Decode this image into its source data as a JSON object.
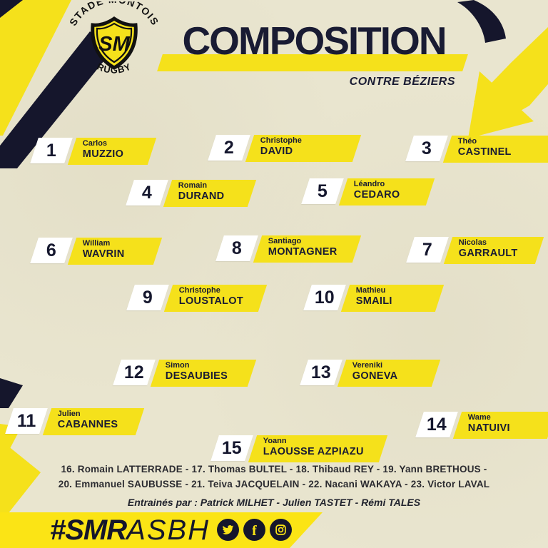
{
  "header": {
    "title_main": "COMPOSITION",
    "title_sub": "CONTRE BÉZIERS"
  },
  "logo": {
    "text_top": "STADE MONTOIS",
    "initials": "SM",
    "text_bottom": "RUGBY"
  },
  "colors": {
    "yellow": "#F5E11B",
    "footer_yellow": "#FBE415",
    "navy": "#191B33",
    "background": "#E9E5CF",
    "white": "#FFFFFF"
  },
  "players": [
    {
      "number": "1",
      "first": "Carlos",
      "last": "MUZZIO"
    },
    {
      "number": "2",
      "first": "Christophe",
      "last": "DAVID"
    },
    {
      "number": "3",
      "first": "Théo",
      "last": "CASTINEL"
    },
    {
      "number": "4",
      "first": "Romain",
      "last": "DURAND"
    },
    {
      "number": "5",
      "first": "Léandro",
      "last": "CEDARO"
    },
    {
      "number": "6",
      "first": "William",
      "last": "WAVRIN"
    },
    {
      "number": "8",
      "first": "Santiago",
      "last": "MONTAGNER"
    },
    {
      "number": "7",
      "first": "Nicolas",
      "last": "GARRAULT"
    },
    {
      "number": "9",
      "first": "Christophe",
      "last": "LOUSTALOT"
    },
    {
      "number": "10",
      "first": "Mathieu",
      "last": "SMAILI"
    },
    {
      "number": "12",
      "first": "Simon",
      "last": "DESAUBIES"
    },
    {
      "number": "13",
      "first": "Vereniki",
      "last": "GONEVA"
    },
    {
      "number": "11",
      "first": "Julien",
      "last": "CABANNES"
    },
    {
      "number": "14",
      "first": "Wame",
      "last": "NATUIVI"
    },
    {
      "number": "15",
      "first": "Yoann",
      "last": "LAOUSSE AZPIAZU"
    }
  ],
  "substitutes": {
    "line1": "16. Romain LATTERRADE - 17. Thomas BULTEL - 18. Thibaud REY - 19. Yann BRETHOUS -",
    "line2": "20. Emmanuel SAUBUSSE - 21. Teiva JACQUELAIN - 22. Nacani WAKAYA - 23. Victor LAVAL"
  },
  "coaches_line": "Entrainés par : Patrick MILHET - Julien TASTET - Rémi TALES",
  "footer": {
    "hashtag_bold": "#SMR",
    "hashtag_light": "ASBH",
    "social_icons": [
      "twitter-icon",
      "facebook-icon",
      "instagram-icon"
    ]
  }
}
